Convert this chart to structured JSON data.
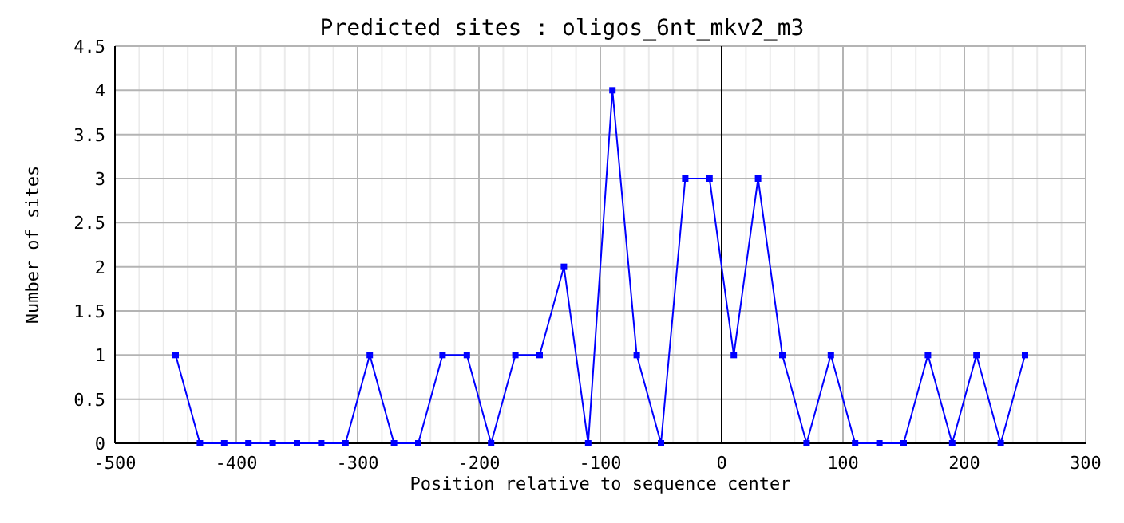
{
  "chart_data": {
    "type": "line",
    "title": "Predicted sites : oligos_6nt_mkv2_m3",
    "xlabel": "Position relative to sequence center",
    "ylabel": "Number of sites",
    "x": [
      -450,
      -430,
      -410,
      -390,
      -370,
      -350,
      -330,
      -310,
      -290,
      -270,
      -250,
      -230,
      -210,
      -190,
      -170,
      -150,
      -130,
      -110,
      -90,
      -70,
      -50,
      -30,
      -10,
      10,
      30,
      50,
      70,
      90,
      110,
      130,
      150,
      170,
      190,
      210,
      230,
      250
    ],
    "series": [
      {
        "color": "#0000ff",
        "values": [
          1,
          0,
          0,
          0,
          0,
          0,
          0,
          0,
          1,
          0,
          0,
          1,
          1,
          0,
          1,
          1,
          2,
          0,
          4,
          1,
          0,
          3,
          3,
          1,
          3,
          1,
          0,
          1,
          0,
          0,
          0,
          1,
          0,
          1,
          0,
          1
        ]
      }
    ],
    "xlim": [
      -500,
      300
    ],
    "xticks": [
      -500,
      {
        "value": -480,
        "label": null
      },
      {
        "value": -460,
        "label": null
      },
      {
        "value": -440,
        "label": null
      },
      {
        "value": -420,
        "label": null
      },
      -400,
      {
        "value": -380,
        "label": null
      },
      {
        "value": -360,
        "label": null
      },
      {
        "value": -340,
        "label": null
      },
      {
        "value": -320,
        "label": null
      },
      -300,
      {
        "value": -280,
        "label": null
      },
      {
        "value": -260,
        "label": null
      },
      {
        "value": -240,
        "label": null
      },
      {
        "value": -220,
        "label": null
      },
      -200,
      {
        "value": -180,
        "label": null
      },
      {
        "value": -160,
        "label": null
      },
      {
        "value": -140,
        "label": null
      },
      {
        "value": -120,
        "label": null
      },
      -100,
      {
        "value": -80,
        "label": null
      },
      {
        "value": -60,
        "label": null
      },
      {
        "value": -40,
        "label": null
      },
      {
        "value": -20,
        "label": null
      },
      0,
      {
        "value": 20,
        "label": null
      },
      {
        "value": 40,
        "label": null
      },
      {
        "value": 60,
        "label": null
      },
      {
        "value": 80,
        "label": null
      },
      100,
      {
        "value": 120,
        "label": null
      },
      {
        "value": 140,
        "label": null
      },
      {
        "value": 160,
        "label": null
      },
      {
        "value": 180,
        "label": null
      },
      200,
      {
        "value": 220,
        "label": null
      },
      {
        "value": 240,
        "label": null
      },
      {
        "value": 260,
        "label": null
      },
      {
        "value": 280,
        "label": null
      },
      300
    ],
    "ylim": [
      0,
      4.5
    ],
    "yticks": [
      0,
      0.5,
      1,
      1.5,
      2,
      2.5,
      3,
      3.5,
      4,
      4.5
    ],
    "grid": true,
    "marker": "square",
    "line_style": "solid",
    "ref_lines": [
      {
        "axis": "x",
        "value": 0,
        "color": "#000000"
      }
    ]
  }
}
